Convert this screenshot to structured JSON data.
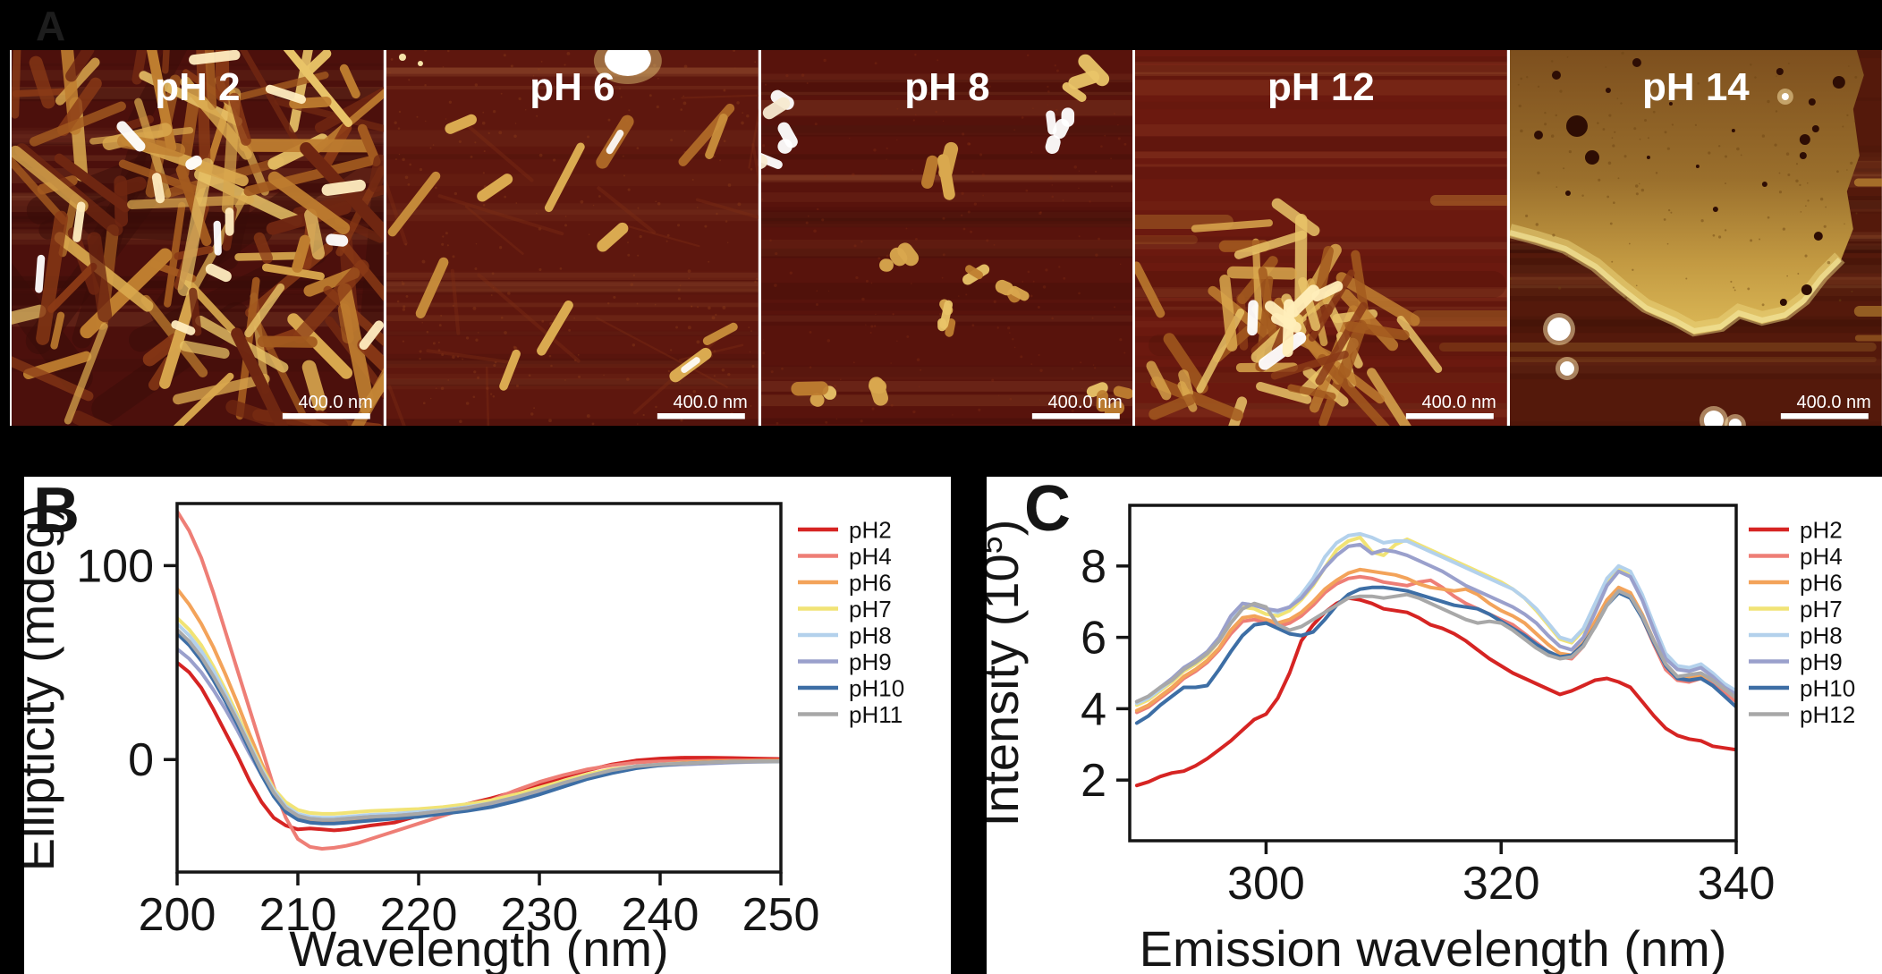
{
  "figure": {
    "panel_a_label": "A",
    "panel_b_label": "B",
    "panel_c_label": "C"
  },
  "afm_panels": [
    {
      "label": "pH 2",
      "scale_bar": "400.0 nm",
      "style": "dense-rods"
    },
    {
      "label": "pH 6",
      "scale_bar": "400.0 nm",
      "style": "sparse-rods"
    },
    {
      "label": "pH 8",
      "scale_bar": "400.0 nm",
      "style": "small-clusters"
    },
    {
      "label": "pH 12",
      "scale_bar": "400.0 nm",
      "style": "rod-bundle"
    },
    {
      "label": "pH 14",
      "scale_bar": "400.0 nm",
      "style": "large-sheet"
    }
  ],
  "chart_data": [
    {
      "id": "B",
      "type": "line",
      "xlabel": "Wavelength (nm)",
      "ylabel": "Ellipticity (mdeg)",
      "xlim": [
        200,
        250
      ],
      "ylim": [
        -58,
        132
      ],
      "xticks": [
        200,
        210,
        220,
        230,
        240,
        250
      ],
      "yticks": [
        0,
        100
      ],
      "grid": false,
      "legend_position": "right",
      "x": [
        200,
        201,
        202,
        203,
        204,
        205,
        206,
        207,
        208,
        209,
        210,
        211,
        212,
        213,
        214,
        215,
        216,
        218,
        220,
        222,
        224,
        226,
        228,
        230,
        232,
        234,
        236,
        238,
        240,
        242,
        244,
        246,
        248,
        250
      ],
      "series": [
        {
          "name": "pH2",
          "color": "#d62423",
          "y": [
            50,
            45,
            37,
            26,
            14,
            2,
            -11,
            -22,
            -30,
            -34,
            -36,
            -35.5,
            -36,
            -36.5,
            -36,
            -35,
            -34,
            -32.5,
            -29,
            -26,
            -23,
            -20,
            -16.5,
            -13,
            -9,
            -5.5,
            -2.5,
            -0.5,
            0.5,
            1,
            1,
            0.8,
            0.5,
            0.3
          ]
        },
        {
          "name": "pH4",
          "color": "#ee7e76",
          "y": [
            128,
            118,
            104,
            86,
            66,
            46,
            26,
            6,
            -14,
            -30,
            -41,
            -45,
            -46,
            -45.5,
            -44.5,
            -43,
            -41,
            -37,
            -33,
            -29,
            -25,
            -21,
            -16,
            -11.5,
            -8,
            -5,
            -3,
            -1.5,
            -1,
            -0.8,
            -0.6,
            -0.5,
            -0.5,
            -0.5
          ]
        },
        {
          "name": "pH6",
          "color": "#f3a35a",
          "y": [
            88,
            80,
            70,
            58,
            44,
            29,
            13,
            -2,
            -15,
            -24,
            -29,
            -31.5,
            -32,
            -32,
            -31.5,
            -31,
            -30.5,
            -30,
            -29,
            -27.5,
            -25.5,
            -23,
            -20,
            -16.5,
            -12.5,
            -9,
            -6,
            -4,
            -2.5,
            -1.5,
            -1,
            -0.8,
            -0.6,
            -0.5
          ]
        },
        {
          "name": "pH7",
          "color": "#f1e375",
          "y": [
            73,
            67,
            59,
            48,
            36,
            23,
            9,
            -4,
            -15,
            -22,
            -26,
            -27.5,
            -28,
            -28,
            -27.5,
            -27,
            -26.5,
            -26,
            -25.5,
            -24.5,
            -23,
            -21,
            -18,
            -14.5,
            -11,
            -7.5,
            -5,
            -3.5,
            -2.5,
            -2,
            -1.5,
            -1.2,
            -1,
            -1
          ]
        },
        {
          "name": "pH8",
          "color": "#b3d1ec",
          "y": [
            70,
            64,
            56,
            46,
            34,
            21,
            8,
            -5,
            -16,
            -24,
            -28,
            -29.5,
            -30,
            -30,
            -29.5,
            -29,
            -28.5,
            -28,
            -27,
            -26,
            -24.5,
            -22.5,
            -19.5,
            -16,
            -12,
            -8.5,
            -5.5,
            -3.5,
            -2.5,
            -2,
            -1.5,
            -1.2,
            -1,
            -1
          ]
        },
        {
          "name": "pH9",
          "color": "#9aa0cc",
          "y": [
            57,
            52,
            45,
            36,
            26,
            15,
            3,
            -8,
            -18,
            -25,
            -29,
            -30.5,
            -31,
            -31,
            -30.5,
            -30,
            -29.5,
            -29,
            -28,
            -26.5,
            -25,
            -23,
            -20,
            -16.5,
            -12.5,
            -9,
            -6,
            -4,
            -3,
            -2.5,
            -2,
            -1.5,
            -1.2,
            -1
          ]
        },
        {
          "name": "pH10",
          "color": "#3d6ea5",
          "y": [
            65,
            59,
            51,
            41,
            30,
            18,
            5,
            -8,
            -19,
            -27,
            -31,
            -32.5,
            -33,
            -33,
            -32.5,
            -32,
            -31.5,
            -30.5,
            -29.5,
            -28,
            -26.5,
            -24.5,
            -21.5,
            -18,
            -14,
            -10,
            -7,
            -4.5,
            -3,
            -2,
            -1.5,
            -1.2,
            -1,
            -1
          ]
        },
        {
          "name": "pH11",
          "color": "#a8a8a8",
          "y": [
            67,
            61,
            53,
            43,
            32,
            20,
            7,
            -6,
            -17,
            -25,
            -29,
            -30.5,
            -31,
            -31,
            -30.5,
            -30,
            -29.5,
            -29,
            -28,
            -26.5,
            -25,
            -22.5,
            -19.5,
            -16,
            -12,
            -8.5,
            -5.5,
            -3.5,
            -2.5,
            -2,
            -1.5,
            -1.2,
            -1,
            -1
          ]
        }
      ]
    },
    {
      "id": "C",
      "type": "line",
      "xlabel": "Emission wavelength (nm)",
      "ylabel": "Intensity (10⁵)",
      "xlim": [
        288.4,
        340
      ],
      "ylim": [
        0.3,
        9.7
      ],
      "xticks": [
        300,
        320,
        340
      ],
      "yticks": [
        2,
        4,
        6,
        8
      ],
      "grid": false,
      "legend_position": "right",
      "x": [
        289,
        290,
        291,
        292,
        293,
        294,
        295,
        296,
        297,
        298,
        299,
        300,
        301,
        302,
        303,
        304,
        305,
        306,
        307,
        308,
        309,
        310,
        311,
        312,
        313,
        314,
        315,
        316,
        317,
        318,
        319,
        320,
        321,
        322,
        323,
        324,
        325,
        326,
        327,
        328,
        329,
        330,
        331,
        332,
        333,
        334,
        335,
        336,
        337,
        338,
        339,
        340
      ],
      "series": [
        {
          "name": "pH2",
          "color": "#d62423",
          "y": [
            1.85,
            1.95,
            2.1,
            2.2,
            2.25,
            2.4,
            2.6,
            2.85,
            3.1,
            3.4,
            3.7,
            3.85,
            4.3,
            5.0,
            5.9,
            6.35,
            6.7,
            6.95,
            7.1,
            7.05,
            6.95,
            6.8,
            6.75,
            6.7,
            6.55,
            6.35,
            6.25,
            6.1,
            5.9,
            5.65,
            5.4,
            5.2,
            5.0,
            4.85,
            4.7,
            4.55,
            4.4,
            4.5,
            4.65,
            4.8,
            4.85,
            4.75,
            4.6,
            4.2,
            3.8,
            3.45,
            3.25,
            3.15,
            3.1,
            2.95,
            2.9,
            2.85
          ]
        },
        {
          "name": "pH4",
          "color": "#ee7e76",
          "y": [
            3.9,
            4.05,
            4.3,
            4.55,
            4.85,
            5.05,
            5.3,
            5.65,
            6.1,
            6.45,
            6.5,
            6.4,
            6.3,
            6.4,
            6.6,
            6.9,
            7.25,
            7.5,
            7.65,
            7.7,
            7.65,
            7.55,
            7.5,
            7.45,
            7.55,
            7.6,
            7.4,
            7.15,
            6.95,
            6.8,
            6.65,
            6.5,
            6.35,
            6.1,
            5.85,
            5.6,
            5.45,
            5.4,
            5.75,
            6.35,
            7.0,
            7.35,
            7.15,
            6.55,
            5.8,
            5.1,
            4.8,
            4.75,
            4.85,
            4.7,
            4.45,
            4.2
          ]
        },
        {
          "name": "pH6",
          "color": "#f3a35a",
          "y": [
            3.95,
            4.1,
            4.35,
            4.6,
            4.9,
            5.1,
            5.35,
            5.7,
            6.2,
            6.55,
            6.6,
            6.5,
            6.4,
            6.5,
            6.7,
            7.0,
            7.35,
            7.6,
            7.8,
            7.9,
            7.85,
            7.8,
            7.75,
            7.65,
            7.5,
            7.4,
            7.35,
            7.3,
            7.35,
            7.2,
            6.95,
            6.75,
            6.6,
            6.4,
            6.1,
            5.8,
            5.55,
            5.5,
            5.85,
            6.45,
            7.05,
            7.4,
            7.25,
            6.65,
            5.9,
            5.25,
            4.9,
            4.85,
            4.95,
            4.8,
            4.55,
            4.3
          ]
        },
        {
          "name": "pH7",
          "color": "#f1e375",
          "y": [
            4.1,
            4.25,
            4.5,
            4.75,
            5.05,
            5.25,
            5.5,
            5.9,
            6.45,
            6.85,
            6.8,
            6.65,
            6.6,
            6.75,
            7.05,
            7.45,
            7.95,
            8.45,
            8.7,
            8.8,
            8.4,
            8.3,
            8.6,
            8.75,
            8.6,
            8.45,
            8.3,
            8.15,
            8.0,
            7.85,
            7.7,
            7.55,
            7.35,
            7.1,
            6.75,
            6.35,
            5.95,
            5.85,
            6.2,
            6.9,
            7.6,
            7.95,
            7.8,
            7.15,
            6.25,
            5.45,
            5.15,
            5.1,
            5.2,
            4.95,
            4.65,
            4.45
          ]
        },
        {
          "name": "pH8",
          "color": "#b3d1ec",
          "y": [
            4.15,
            4.3,
            4.55,
            4.8,
            5.1,
            5.3,
            5.55,
            5.95,
            6.55,
            6.95,
            6.9,
            6.8,
            6.7,
            6.85,
            7.2,
            7.65,
            8.25,
            8.65,
            8.85,
            8.9,
            8.8,
            8.65,
            8.7,
            8.7,
            8.55,
            8.4,
            8.25,
            8.1,
            7.95,
            7.8,
            7.65,
            7.5,
            7.35,
            7.1,
            6.8,
            6.4,
            6.0,
            5.9,
            6.25,
            6.95,
            7.65,
            8.0,
            7.85,
            7.2,
            6.35,
            5.55,
            5.2,
            5.15,
            5.25,
            5.0,
            4.7,
            4.5
          ]
        },
        {
          "name": "pH9",
          "color": "#9aa0cc",
          "y": [
            4.2,
            4.35,
            4.6,
            4.85,
            5.15,
            5.35,
            5.6,
            6.0,
            6.6,
            6.95,
            6.9,
            6.8,
            6.75,
            6.85,
            7.1,
            7.5,
            7.95,
            8.3,
            8.55,
            8.6,
            8.35,
            8.45,
            8.4,
            8.3,
            8.15,
            8.0,
            7.85,
            7.65,
            7.45,
            7.3,
            7.15,
            7.0,
            6.85,
            6.65,
            6.4,
            6.05,
            5.75,
            5.65,
            6.0,
            6.7,
            7.45,
            7.85,
            7.7,
            7.05,
            6.2,
            5.4,
            5.1,
            5.05,
            5.15,
            4.9,
            4.6,
            4.4
          ]
        },
        {
          "name": "pH10",
          "color": "#3d6ea5",
          "y": [
            3.6,
            3.8,
            4.1,
            4.35,
            4.6,
            4.6,
            4.65,
            5.1,
            5.6,
            6.05,
            6.35,
            6.4,
            6.25,
            6.1,
            6.05,
            6.15,
            6.5,
            6.9,
            7.2,
            7.35,
            7.4,
            7.4,
            7.35,
            7.3,
            7.2,
            7.1,
            7.0,
            6.9,
            6.85,
            6.8,
            6.65,
            6.45,
            6.25,
            6.05,
            5.8,
            5.6,
            5.45,
            5.5,
            5.8,
            6.3,
            6.9,
            7.25,
            7.1,
            6.55,
            5.85,
            5.2,
            4.85,
            4.8,
            4.85,
            4.65,
            4.35,
            4.05
          ]
        },
        {
          "name": "pH12",
          "color": "#a8a8a8",
          "y": [
            4.2,
            4.35,
            4.6,
            4.8,
            5.1,
            5.3,
            5.55,
            5.9,
            6.4,
            6.8,
            6.95,
            6.85,
            6.35,
            6.2,
            6.3,
            6.5,
            6.7,
            6.9,
            7.1,
            7.15,
            7.15,
            7.1,
            7.15,
            7.2,
            7.1,
            6.95,
            6.8,
            6.65,
            6.5,
            6.4,
            6.45,
            6.4,
            6.2,
            5.95,
            5.7,
            5.5,
            5.4,
            5.45,
            5.75,
            6.3,
            6.9,
            7.3,
            7.15,
            6.6,
            5.9,
            5.25,
            4.9,
            4.95,
            5.0,
            4.8,
            4.55,
            4.3
          ]
        }
      ]
    }
  ]
}
